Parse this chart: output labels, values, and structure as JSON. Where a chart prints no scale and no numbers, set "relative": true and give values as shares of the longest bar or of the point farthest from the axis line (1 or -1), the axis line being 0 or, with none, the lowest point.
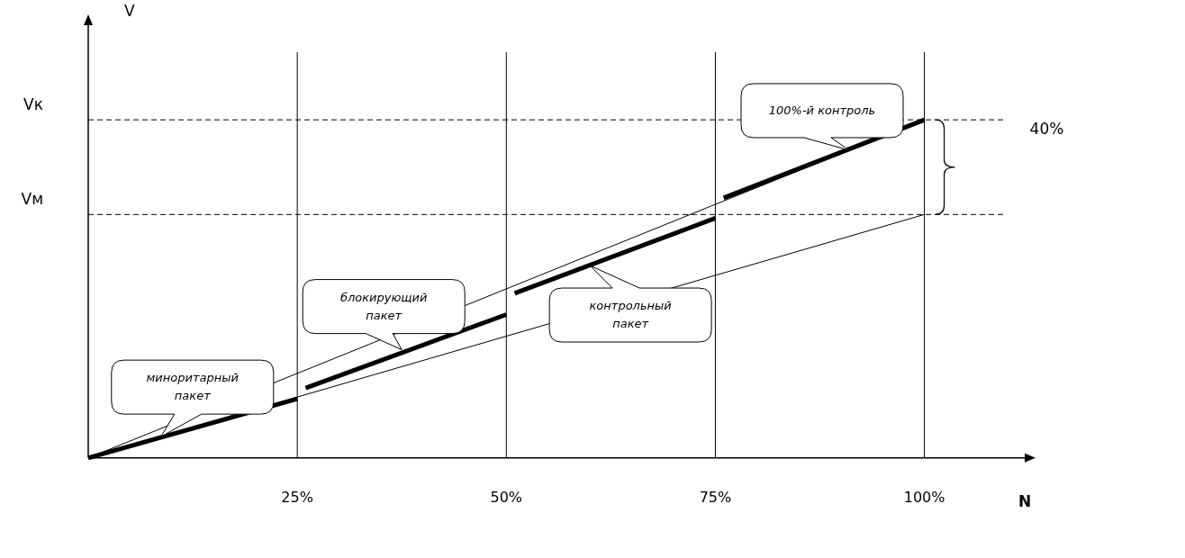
{
  "chart_data": {
    "type": "line",
    "relative": true,
    "xlabel": "N",
    "xlim": [
      0,
      112
    ],
    "xticks": [
      {
        "value": 25,
        "label": "25%"
      },
      {
        "value": 50,
        "label": "50%"
      },
      {
        "value": 75,
        "label": "75%"
      },
      {
        "value": 100,
        "label": "100%"
      }
    ],
    "series": [
      {
        "color": "#000000",
        "x": [
          0,
          100
        ],
        "values": [
          0,
          1
        ]
      },
      {
        "color": "#000000",
        "x": [
          0,
          100
        ],
        "values": [
          0,
          0.72
        ]
      },
      {
        "color": "#000000",
        "x": [
          0,
          25
        ],
        "values": [
          0,
          0.175
        ]
      },
      {
        "color": "#000000",
        "x": [
          26,
          50
        ],
        "values": [
          0.207,
          0.424
        ]
      },
      {
        "color": "#000000",
        "x": [
          51,
          75
        ],
        "values": [
          0.487,
          0.709
        ]
      },
      {
        "color": "#000000",
        "x": [
          76,
          100
        ],
        "values": [
          0.769,
          1
        ]
      }
    ],
    "ref_lines": [
      {
        "axis": "y",
        "value": 1,
        "label": "Vк",
        "line_style": "dashed"
      },
      {
        "axis": "y",
        "value": 0.72,
        "label": "Vм",
        "line_style": "dashed"
      },
      {
        "axis": "x",
        "value": 25
      },
      {
        "axis": "x",
        "value": 50
      },
      {
        "axis": "x",
        "value": 75
      },
      {
        "axis": "x",
        "value": 100
      }
    ],
    "annotations": [
      "V",
      "40%",
      {
        "text": "миноритарный пакет",
        "x": 8.7,
        "y": 0.063
      },
      {
        "text": "блокирующий пакет",
        "x": 37.5,
        "y": 0.32
      },
      {
        "text": "контрольный пакет",
        "x": 60,
        "y": 0.569
      },
      {
        "text": "100%-й контроль",
        "x": 91,
        "y": 0.91
      }
    ],
    "grid": false,
    "legend": false,
    "marker": "none",
    "line_style": "solid"
  }
}
